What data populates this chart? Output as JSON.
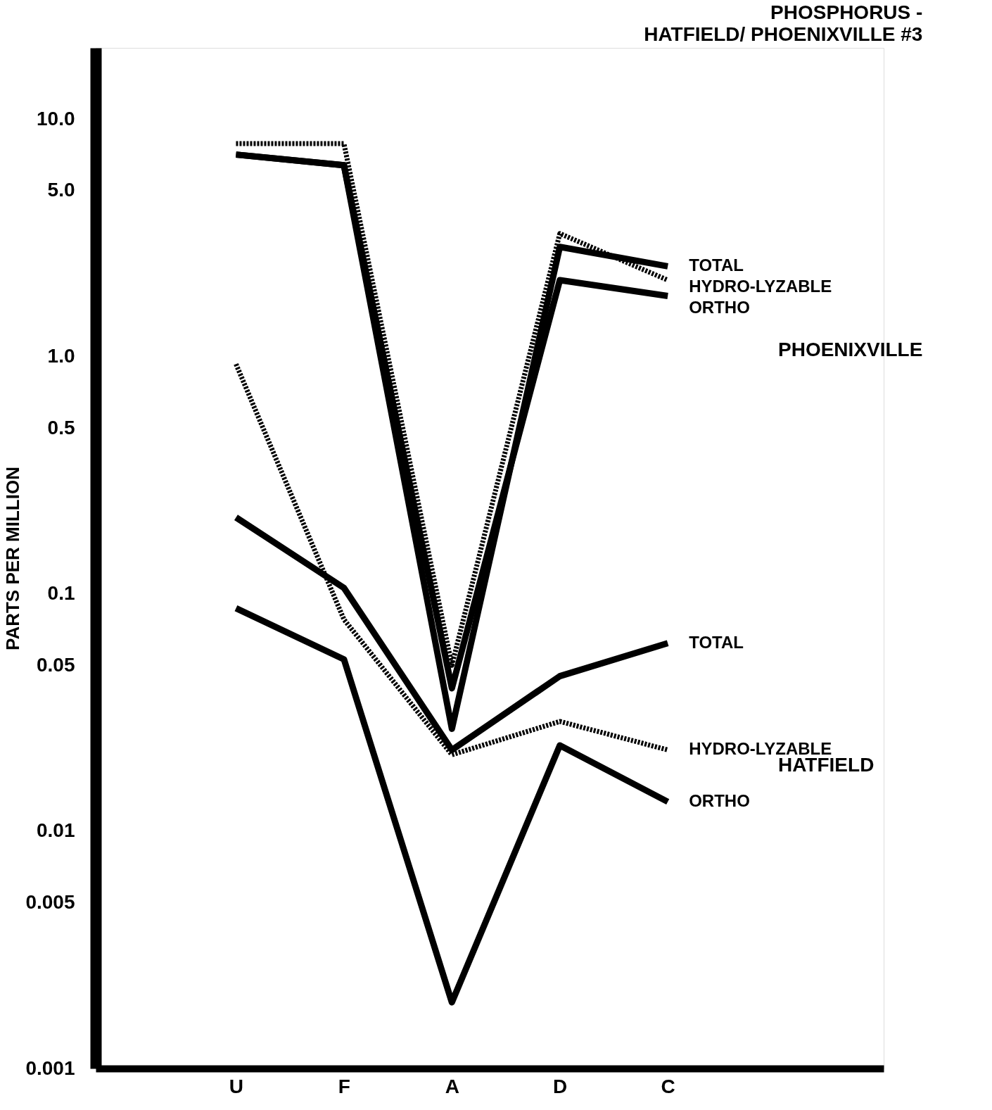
{
  "chart_data": {
    "type": "line",
    "title": "PHOSPHORUS -",
    "subtitle": "HATFIELD/ PHOENIXVILLE #3",
    "ylabel": "PARTS PER MILLION",
    "categories": [
      "U",
      "F",
      "A",
      "D",
      "C"
    ],
    "log": "y",
    "ylim": [
      0.001,
      20
    ],
    "yticks": [
      {
        "value": 10,
        "label": "10.0"
      },
      {
        "value": 5,
        "label": "5.0"
      },
      {
        "value": 1,
        "label": "1.0"
      },
      0.5,
      0.1,
      0.05,
      0.01,
      0.005,
      0.001
    ],
    "grid": false,
    "marker": "none",
    "series": [
      {
        "name": "HYDRO-LYZABLE",
        "color": "#000000",
        "line_style": "dotted",
        "values": [
          7.9,
          7.9,
          0.05,
          3.3,
          2.1
        ]
      },
      {
        "name": "TOTAL",
        "color": "#000000",
        "line_style": "solid",
        "values": [
          7.1,
          6.4,
          0.027,
          2.9,
          2.4
        ]
      },
      {
        "name": "ORTHO",
        "color": "#000000",
        "line_style": "solid",
        "values": [
          7.1,
          6.4,
          0.04,
          2.1,
          1.8
        ]
      },
      {
        "name": "TOTAL",
        "color": "#000000",
        "line_style": "solid",
        "values": [
          0.21,
          0.106,
          0.022,
          0.045,
          0.062
        ]
      },
      {
        "name": "HYDRO-LYZABLE",
        "color": "#000000",
        "line_style": "dotted",
        "values": [
          0.93,
          0.078,
          0.021,
          0.029,
          0.022
        ]
      },
      {
        "name": "ORTHO",
        "color": "#000000",
        "line_style": "solid",
        "values": [
          0.087,
          0.053,
          0.0019,
          0.023,
          0.0133
        ]
      }
    ],
    "annotations": [
      "PHOENIXVILLE",
      "HATFIELD"
    ]
  }
}
